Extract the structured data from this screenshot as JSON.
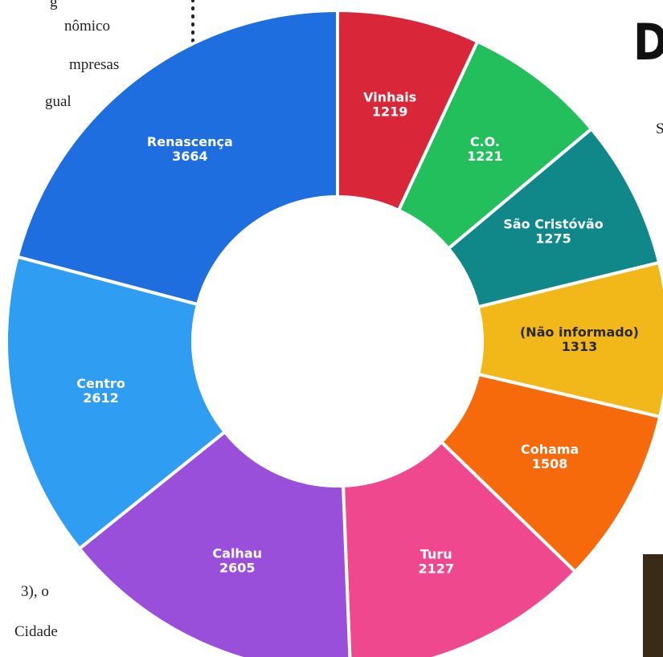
{
  "chart_data": {
    "type": "donut",
    "categories": [
      "Vinhais",
      "C.O.",
      "São Cristóvão",
      "(Não informado)",
      "Cohama",
      "Turu",
      "Calhau",
      "Centro",
      "Renascença"
    ],
    "values": [
      1219,
      1221,
      1275,
      1313,
      1508,
      2127,
      2605,
      2612,
      3664
    ],
    "colors": [
      "#d92638",
      "#22bf5c",
      "#10888a",
      "#f2b719",
      "#f66a0c",
      "#f0488e",
      "#9a4fdb",
      "#2f9df2",
      "#1f6ee0"
    ]
  },
  "page_text": {
    "left_lines": [
      "g",
      "nômico",
      "mpresas",
      "gual"
    ],
    "left_bottom_lines": [
      "3), o",
      "Cidade"
    ],
    "heading_letter": "D",
    "side_letter": "S"
  }
}
